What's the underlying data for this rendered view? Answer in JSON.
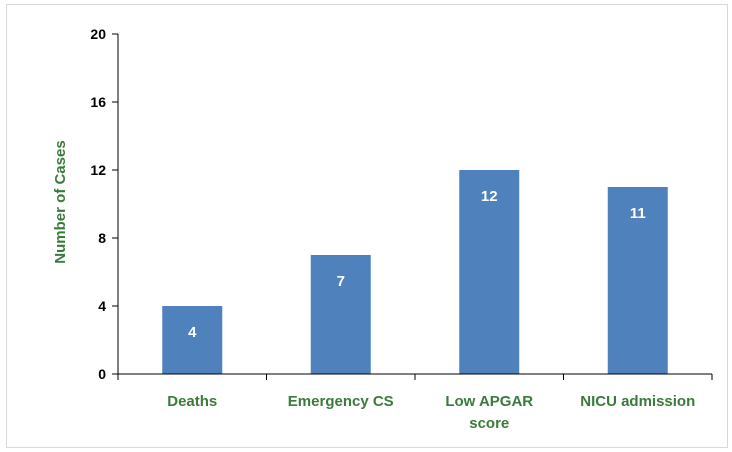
{
  "chart_data": {
    "type": "bar",
    "categories": [
      "Deaths",
      "Emergency CS",
      "Low APGAR score",
      "NICU admission"
    ],
    "category_lines": [
      [
        "Deaths"
      ],
      [
        "Emergency CS"
      ],
      [
        "Low APGAR",
        "score"
      ],
      [
        "NICU admission"
      ]
    ],
    "values": [
      4,
      7,
      12,
      11
    ],
    "data_labels": [
      "4",
      "7",
      "12",
      "11"
    ],
    "title": "",
    "xlabel": "",
    "ylabel": "Number of Cases",
    "ylim": [
      0,
      20
    ],
    "yticks": [
      0,
      4,
      8,
      12,
      16,
      20
    ],
    "grid": false,
    "legend": "none",
    "colors": {
      "bar": "#4f81bd",
      "label_text": "#3b7a3b",
      "axis": "#000000",
      "data_label": "#ffffff"
    }
  }
}
